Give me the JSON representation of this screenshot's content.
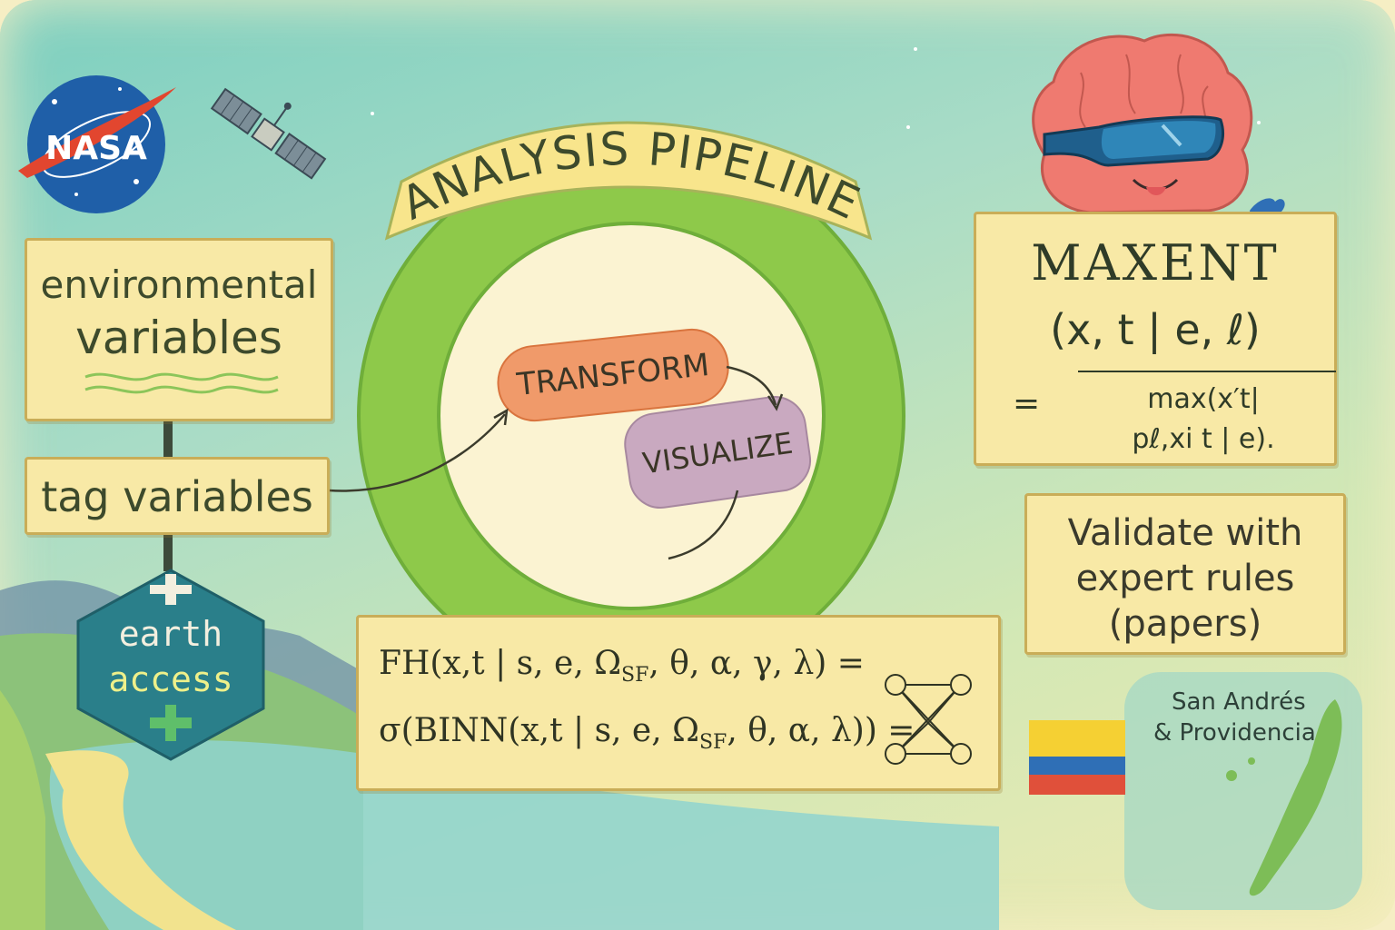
{
  "title": "ANALYSIS PIPELINE",
  "logos": {
    "nasa": "NASA",
    "earthaccess_line1": "earth",
    "earthaccess_line2": "access"
  },
  "nodes": {
    "environmental_line1": "environmental",
    "environmental_line2": "variables",
    "tag": "tag variables",
    "transform": "TRANSFORM",
    "visualize": "VISUALIZE",
    "maxent_title": "MAXENT",
    "maxent_args": "(x, t | e, ℓ)",
    "maxent_eq": "=",
    "maxent_numerator": "max(x′t|",
    "maxent_denominator": "pℓ,xi t | e).",
    "validate_line1": "Validate with",
    "validate_line2": "expert rules",
    "validate_line3": "(papers)",
    "formula_line1": "FH(x,t | s, e, Ω",
    "formula_line1_sub": "SF",
    "formula_line1_rest": ", θ, α, γ, λ) =",
    "formula_line2": "σ(BINN(x,t | s, e, Ω",
    "formula_line2_sub": "SF",
    "formula_line2_rest": ", θ, α, λ)) =",
    "island_line1": "San Andrés",
    "island_line2": "& Providencia"
  },
  "colors": {
    "ring": "#8ec94a",
    "ring_inner": "#fbf3d2",
    "transform": "#f09a6a",
    "visualize": "#c9a9c0",
    "box": "#f8e9a6",
    "flag_yellow": "#f5d033",
    "flag_blue": "#2f6fb6",
    "flag_red": "#e0503a"
  },
  "icons": [
    "nasa-logo-icon",
    "satellite-icon",
    "brain-mascot-icon",
    "earthaccess-hexagon-icon",
    "neural-network-icon",
    "colombia-flag-icon",
    "island-map-icon"
  ]
}
